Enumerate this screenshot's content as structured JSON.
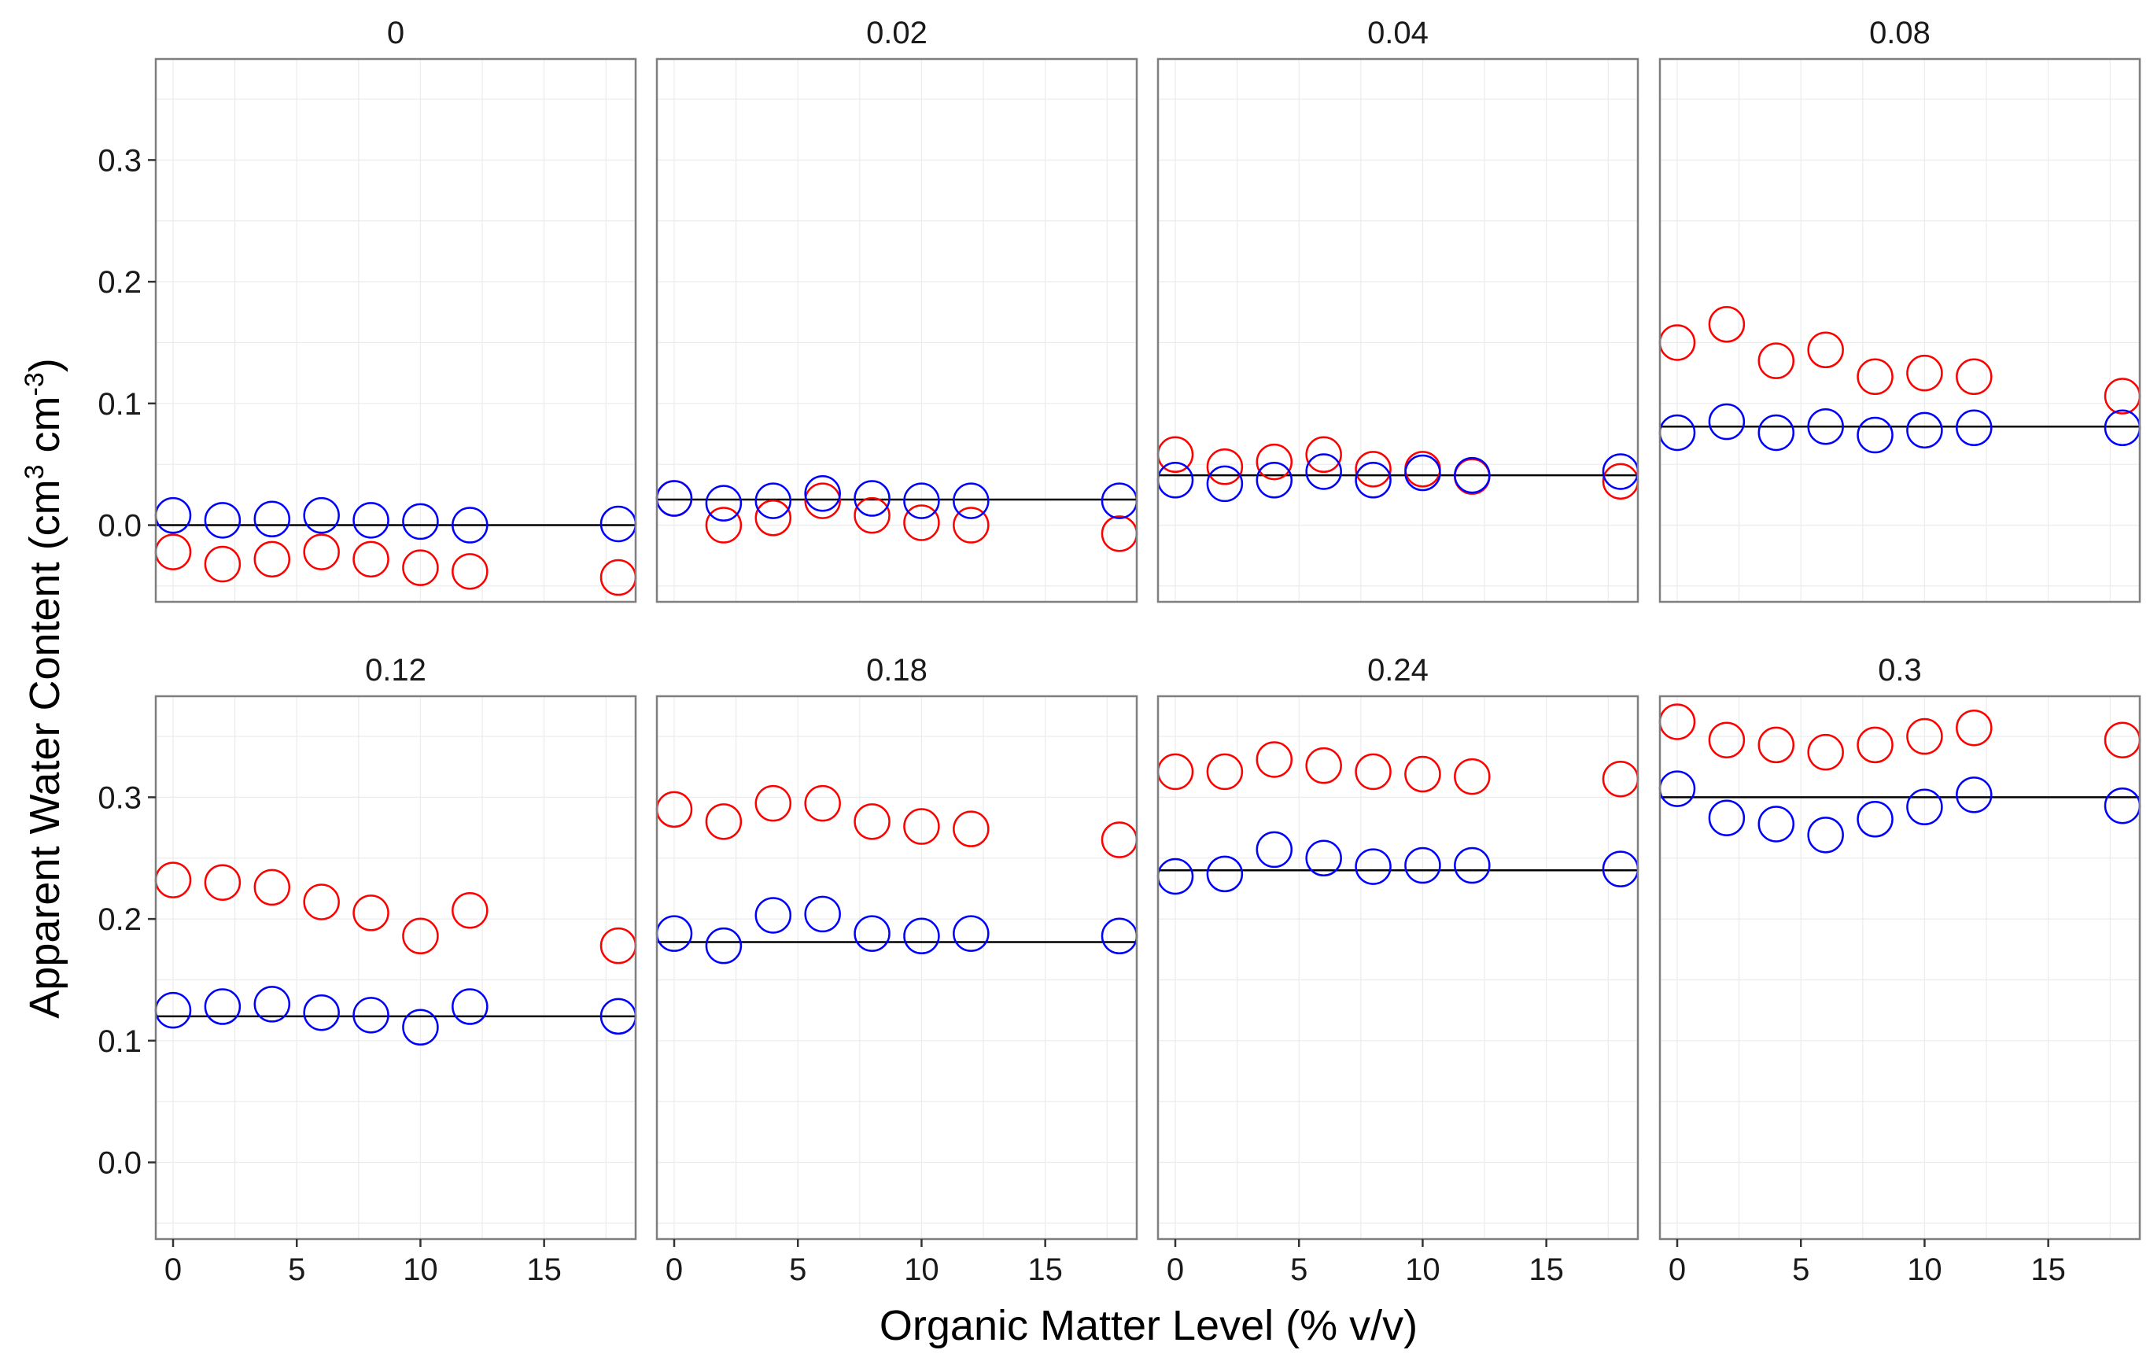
{
  "chart_data": {
    "type": "scatter",
    "xlabel": "Organic Matter Level (% v/v)",
    "ylabel": {
      "prefix": "Apparent Water Content (cm",
      "sup1": "3",
      "middle": " cm",
      "sup2": "-3",
      "suffix": ")"
    },
    "x_ticks": [
      0,
      5,
      10,
      15
    ],
    "x_tick_labels": [
      "0",
      "5",
      "10",
      "15"
    ],
    "y_ticks": [
      0.0,
      0.1,
      0.2,
      0.3
    ],
    "y_tick_labels": [
      "0.0",
      "0.1",
      "0.2",
      "0.3"
    ],
    "xlim": [
      -0.7,
      18.7
    ],
    "ylim": [
      -0.063,
      0.383
    ],
    "x": [
      0,
      2,
      4,
      6,
      8,
      10,
      12,
      18
    ],
    "colors": {
      "red_series": "#ff0000",
      "blue_series": "#0000ff",
      "reference_line": "#000000",
      "panel_border": "#7f7f7f",
      "grid": "#ebebeb"
    },
    "panels": [
      {
        "label": "0",
        "reference": 0.0,
        "red": [
          -0.022,
          -0.032,
          -0.028,
          -0.022,
          -0.028,
          -0.035,
          -0.038,
          -0.043
        ],
        "blue": [
          0.008,
          0.004,
          0.005,
          0.008,
          0.004,
          0.003,
          0.0,
          0.001
        ]
      },
      {
        "label": "0.02",
        "reference": 0.021,
        "red": [
          0.022,
          0.0,
          0.006,
          0.02,
          0.008,
          0.002,
          0.0,
          -0.007
        ],
        "blue": [
          0.022,
          0.018,
          0.02,
          0.026,
          0.022,
          0.02,
          0.02,
          0.02
        ]
      },
      {
        "label": "0.04",
        "reference": 0.041,
        "red": [
          0.058,
          0.048,
          0.052,
          0.058,
          0.046,
          0.046,
          0.04,
          0.036
        ],
        "blue": [
          0.037,
          0.034,
          0.037,
          0.044,
          0.037,
          0.043,
          0.041,
          0.044
        ]
      },
      {
        "label": "0.08",
        "reference": 0.081,
        "red": [
          0.15,
          0.165,
          0.135,
          0.144,
          0.122,
          0.125,
          0.122,
          0.106
        ],
        "blue": [
          0.076,
          0.085,
          0.076,
          0.081,
          0.074,
          0.078,
          0.08,
          0.08
        ]
      },
      {
        "label": "0.12",
        "reference": 0.12,
        "red": [
          0.232,
          0.23,
          0.226,
          0.214,
          0.205,
          0.186,
          0.207,
          0.178
        ],
        "blue": [
          0.125,
          0.128,
          0.13,
          0.123,
          0.121,
          0.111,
          0.128,
          0.12
        ]
      },
      {
        "label": "0.18",
        "reference": 0.181,
        "red": [
          0.29,
          0.28,
          0.295,
          0.295,
          0.28,
          0.276,
          0.274,
          0.265
        ],
        "blue": [
          0.188,
          0.178,
          0.203,
          0.204,
          0.188,
          0.186,
          0.188,
          0.186
        ]
      },
      {
        "label": "0.24",
        "reference": 0.24,
        "red": [
          0.321,
          0.321,
          0.331,
          0.326,
          0.321,
          0.319,
          0.317,
          0.315
        ],
        "blue": [
          0.235,
          0.237,
          0.257,
          0.25,
          0.243,
          0.244,
          0.244,
          0.241
        ]
      },
      {
        "label": "0.3",
        "reference": 0.3,
        "red": [
          0.362,
          0.347,
          0.343,
          0.337,
          0.343,
          0.35,
          0.357,
          0.347
        ],
        "blue": [
          0.307,
          0.283,
          0.278,
          0.269,
          0.282,
          0.292,
          0.302,
          0.293
        ]
      }
    ]
  }
}
